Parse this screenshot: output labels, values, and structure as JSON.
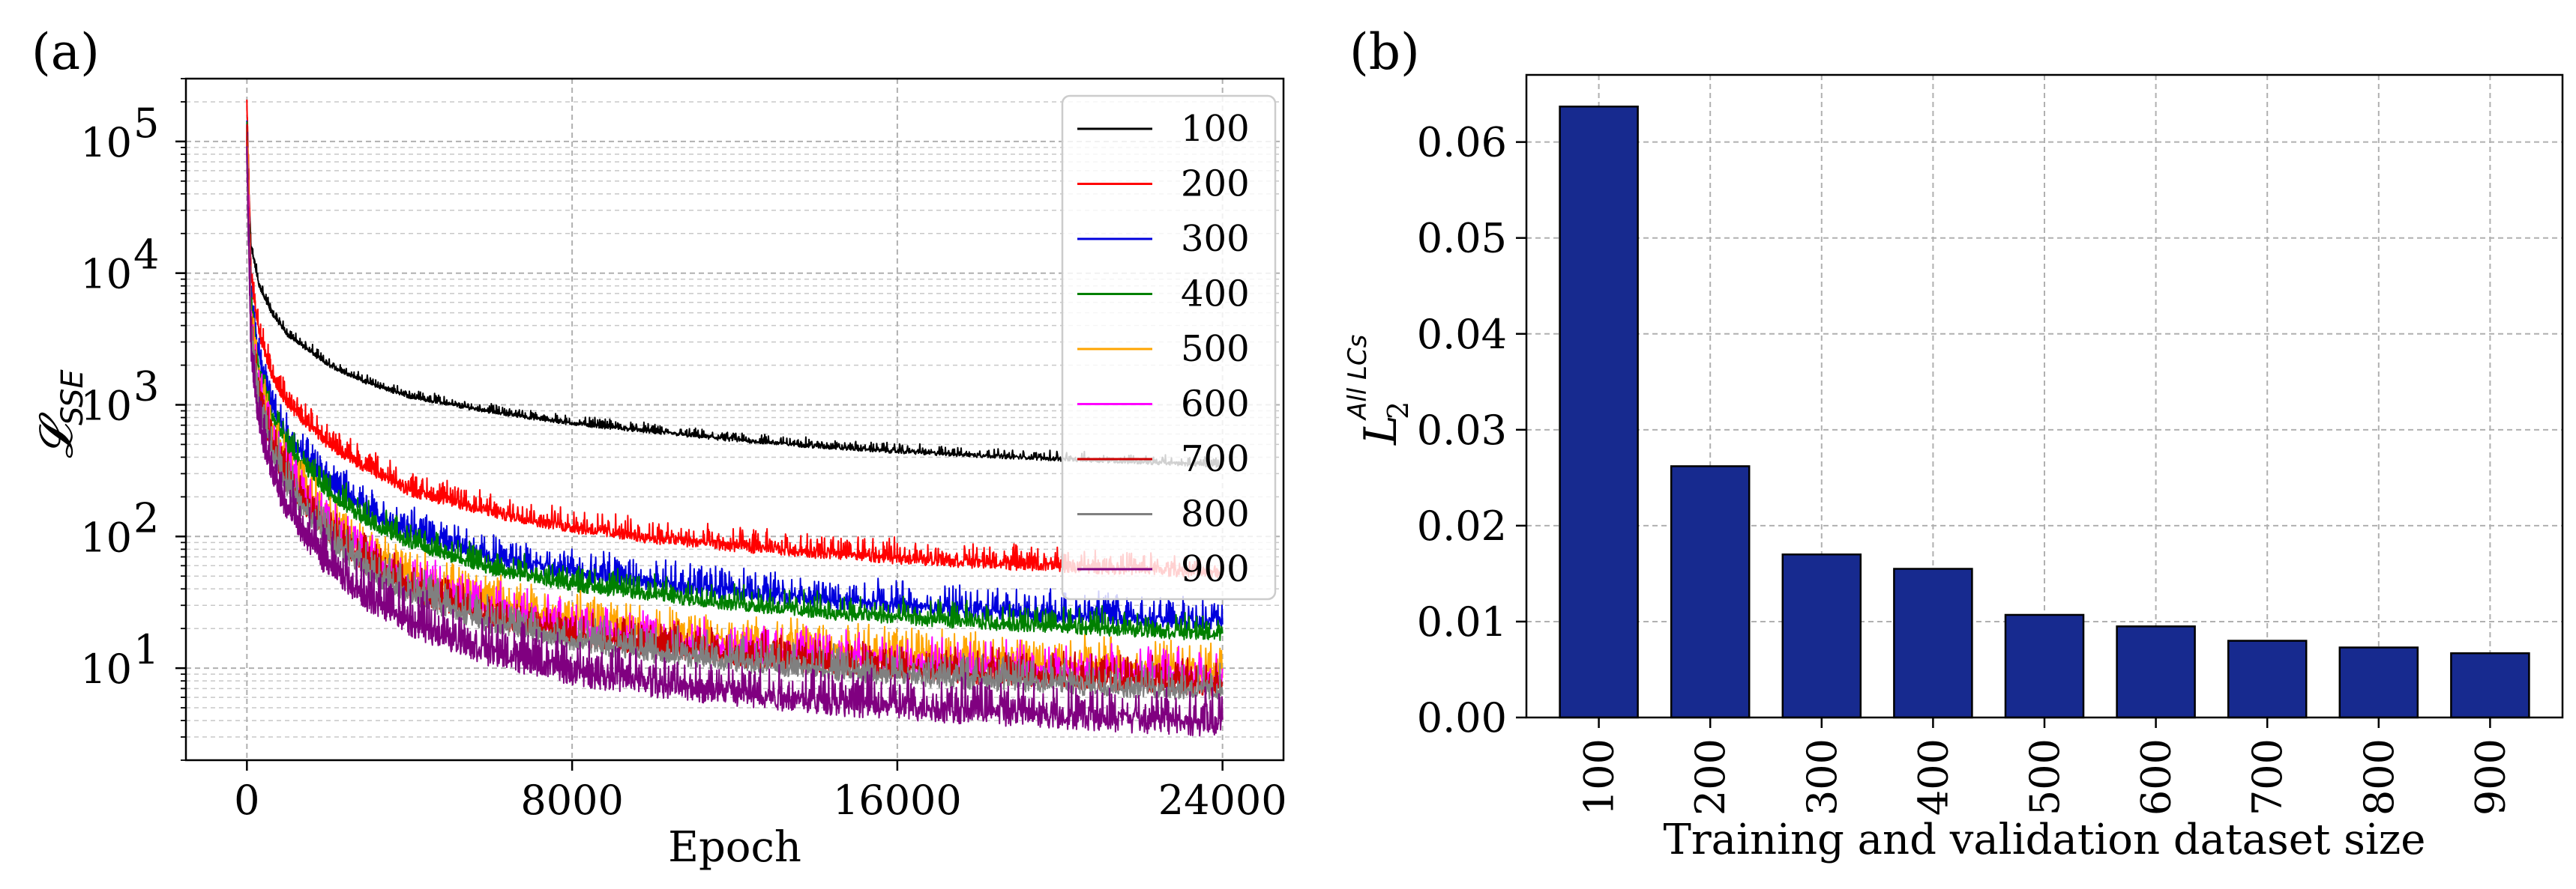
{
  "chart_data": [
    {
      "panel_label": "(a)",
      "type": "line",
      "xlabel": "Epoch",
      "ylabel_symbol": "𝓛",
      "ylabel_subscript": "SSE",
      "xlim": [
        -1500,
        25500
      ],
      "ylim": [
        2.0,
        300000
      ],
      "yscale": "log",
      "grid": true,
      "grid_minor": true,
      "legend_position": "top-right",
      "x_ticks": [
        0,
        8000,
        16000,
        24000
      ],
      "x_tick_labels": [
        "0",
        "8000",
        "16000",
        "24000"
      ],
      "y_ticks": [
        10,
        100,
        1000,
        10000,
        100000
      ],
      "y_tick_labels": [
        {
          "base": "10",
          "exp": "1"
        },
        {
          "base": "10",
          "exp": "2"
        },
        {
          "base": "10",
          "exp": "3"
        },
        {
          "base": "10",
          "exp": "4"
        },
        {
          "base": "10",
          "exp": "5"
        }
      ],
      "x": [
        0,
        100,
        300,
        600,
        1000,
        2000,
        3000,
        4000,
        6000,
        8000,
        10000,
        12000,
        14000,
        16000,
        18000,
        20000,
        22000,
        24000
      ],
      "series": [
        {
          "name": "100",
          "color": "#000000",
          "noise": 0.03,
          "values": [
            100000,
            16000,
            8000,
            5000,
            3400,
            2000,
            1450,
            1150,
            880,
            720,
            620,
            540,
            480,
            440,
            410,
            385,
            365,
            345
          ]
        },
        {
          "name": "200",
          "color": "#ff0000",
          "noise": 0.08,
          "values": [
            200000,
            9000,
            3500,
            1700,
            1000,
            500,
            320,
            220,
            150,
            115,
            95,
            83,
            74,
            67,
            62,
            58,
            55,
            52
          ]
        },
        {
          "name": "300",
          "color": "#0000dd",
          "noise": 0.11,
          "values": [
            130000,
            6000,
            2200,
            1000,
            550,
            250,
            150,
            105,
            68,
            52,
            43,
            37,
            32,
            29,
            26.5,
            24.5,
            23,
            21.5
          ]
        },
        {
          "name": "400",
          "color": "#008000",
          "noise": 0.09,
          "values": [
            120000,
            5000,
            1800,
            850,
            460,
            210,
            125,
            88,
            56,
            42,
            35,
            30,
            26,
            23.5,
            21.5,
            20,
            18.8,
            17.5
          ]
        },
        {
          "name": "500",
          "color": "#ffa500",
          "noise": 0.14,
          "values": [
            100000,
            4000,
            1300,
            600,
            310,
            130,
            74,
            50,
            30,
            22,
            18,
            15,
            13.2,
            12,
            11,
            10.2,
            9.6,
            9
          ]
        },
        {
          "name": "600",
          "color": "#ff00ff",
          "noise": 0.14,
          "values": [
            90000,
            3500,
            1150,
            520,
            270,
            112,
            64,
            43,
            26,
            19,
            15.5,
            13,
            11.5,
            10.5,
            9.6,
            9,
            8.4,
            8
          ]
        },
        {
          "name": "700",
          "color": "#cc0000",
          "noise": 0.13,
          "values": [
            85000,
            3200,
            1000,
            470,
            245,
            100,
            57,
            38,
            23,
            17,
            14,
            11.8,
            10.4,
            9.4,
            8.6,
            8,
            7.5,
            7
          ]
        },
        {
          "name": "800",
          "color": "#808080",
          "noise": 0.13,
          "values": [
            80000,
            3000,
            950,
            440,
            225,
            92,
            52,
            35,
            21,
            15.5,
            12.6,
            10.7,
            9.4,
            8.5,
            7.8,
            7.2,
            6.8,
            6.4
          ]
        },
        {
          "name": "900",
          "color": "#800080",
          "noise": 0.18,
          "values": [
            75000,
            2500,
            700,
            300,
            150,
            58,
            32,
            21,
            12.5,
            9,
            7.3,
            6.2,
            5.4,
            4.9,
            4.5,
            4.2,
            3.9,
            3.6
          ]
        }
      ]
    },
    {
      "panel_label": "(b)",
      "type": "bar",
      "xlabel": "Training and validation dataset size",
      "ylabel_symbol": "L",
      "ylabel_sub": "2",
      "ylabel_sup": "All LCs",
      "categories": [
        "100",
        "200",
        "300",
        "400",
        "500",
        "600",
        "700",
        "800",
        "900"
      ],
      "values": [
        0.0637,
        0.0262,
        0.017,
        0.0155,
        0.0107,
        0.0095,
        0.008,
        0.0073,
        0.0067
      ],
      "ylim": [
        0,
        0.067
      ],
      "y_ticks": [
        0,
        0.01,
        0.02,
        0.03,
        0.04,
        0.05,
        0.06
      ],
      "y_tick_labels": [
        "0.00",
        "0.01",
        "0.02",
        "0.03",
        "0.04",
        "0.05",
        "0.06"
      ],
      "bar_color": "#172a8f",
      "grid": true
    }
  ]
}
